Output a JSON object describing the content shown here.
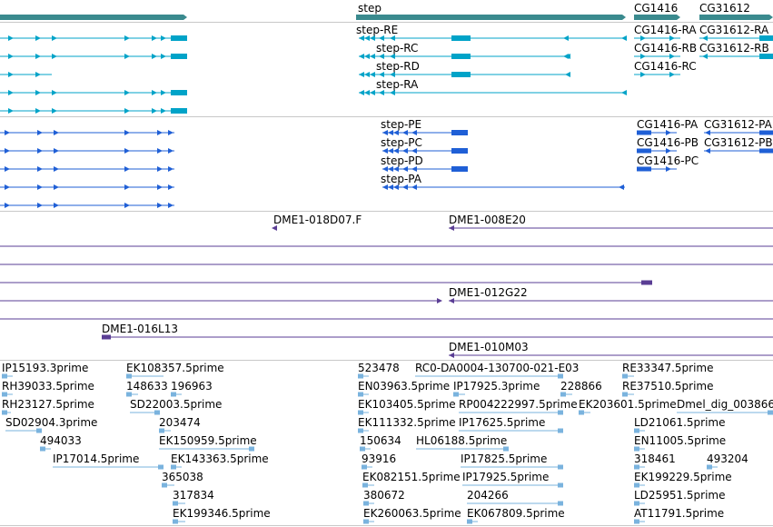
{
  "colors": {
    "gene": "#3a8a8e",
    "transcript": "#00a3c8",
    "protein": "#1f5fd6",
    "clone": "#5a3d94",
    "est": "#7ab3de"
  },
  "tracks": {
    "genes": {
      "labels": [
        "step",
        "CG1416",
        "CG31612"
      ]
    },
    "transcripts": {
      "labels": [
        "step-RE",
        "step-RC",
        "step-RD",
        "step-RA",
        "CG1416-RA",
        "CG31612-RA",
        "CG1416-RB",
        "CG31612-RB",
        "CG1416-RC"
      ]
    },
    "proteins": {
      "labels": [
        "step-PE",
        "step-PC",
        "step-PD",
        "step-PA",
        "CG1416-PA",
        "CG31612-PA",
        "CG1416-PB",
        "CG31612-PB",
        "CG1416-PC"
      ]
    },
    "clones": {
      "labels": [
        "DME1-018D07.F",
        "DME1-008E20",
        "DME1-012G22",
        "DME1-016L13",
        "DME1-010M03"
      ]
    },
    "ests": {
      "labels": [
        "IP15193.3prime",
        "RH39033.5prime",
        "RH23127.5prime",
        "SD02904.3prime",
        "494033",
        "IP17014.5prime",
        "EK108357.5prime",
        "148633",
        "196963",
        "SD22003.5prime",
        "203474",
        "EK150959.5prime",
        "EK143363.5prime",
        "365038",
        "317834",
        "EK199346.5prime",
        "523478",
        "RC0-DA0004-130700-021-E03",
        "EN03963.5prime",
        "IP17925.3prime",
        "228866",
        "EK103405.5prime",
        "RP004222997.5prime",
        "EK203601.5prime",
        "EK111332.5prime",
        "IP17625.5prime",
        "150634",
        "HL06188.5prime",
        "93916",
        "IP17825.5prime",
        "EK082151.5prime",
        "IP17925.5prime",
        "380672",
        "204266",
        "EK260063.5prime",
        "EK067809.5prime",
        "RE33347.5prime",
        "RE37510.5prime",
        "Dmel_dig_003866",
        "LD21061.5prime",
        "EN11005.5prime",
        "318461",
        "493204",
        "EK199229.5prime",
        "LD25951.5prime",
        "AT11791.5prime"
      ]
    }
  }
}
